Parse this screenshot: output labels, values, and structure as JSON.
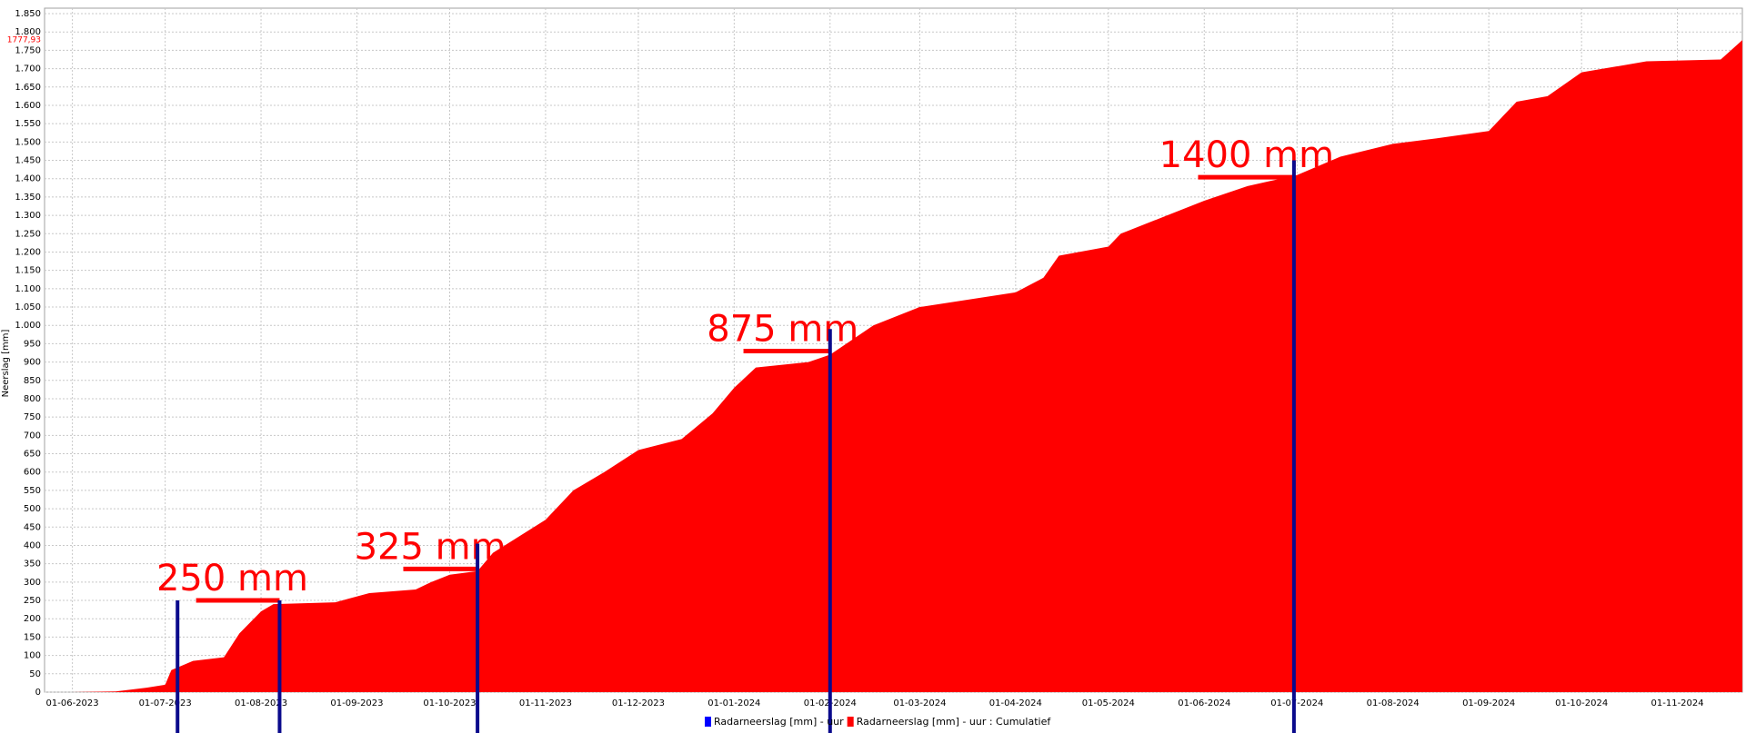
{
  "chart_data": {
    "type": "area",
    "y_label": "Neerslag [mm]",
    "x": [
      "01-06-2023",
      "15-06-2023",
      "25-06-2023",
      "01-07-2023",
      "03-07-2023",
      "10-07-2023",
      "20-07-2023",
      "25-07-2023",
      "01-08-2023",
      "05-08-2023",
      "25-08-2023",
      "05-09-2023",
      "20-09-2023",
      "25-09-2023",
      "01-10-2023",
      "10-10-2023",
      "15-10-2023",
      "01-11-2023",
      "10-11-2023",
      "20-11-2023",
      "01-12-2023",
      "15-12-2023",
      "25-12-2023",
      "01-01-2024",
      "08-01-2024",
      "25-01-2024",
      "01-02-2024",
      "15-02-2024",
      "01-03-2024",
      "01-04-2024",
      "10-04-2024",
      "15-04-2024",
      "01-05-2024",
      "05-05-2024",
      "20-05-2024",
      "01-06-2024",
      "15-06-2024",
      "01-07-2024",
      "15-07-2024",
      "01-08-2024",
      "15-08-2024",
      "01-09-2024",
      "10-09-2024",
      "20-09-2024",
      "01-10-2024",
      "15-10-2024",
      "22-10-2024",
      "15-11-2024",
      "22-11-2024"
    ],
    "series": [
      {
        "name": "Radarneerslag [mm] - uur : Cumulatief",
        "color": "#ff0000",
        "values": [
          0,
          2,
          12,
          20,
          60,
          85,
          95,
          160,
          220,
          240,
          245,
          270,
          280,
          300,
          320,
          330,
          380,
          470,
          550,
          600,
          660,
          690,
          760,
          830,
          885,
          900,
          920,
          1000,
          1050,
          1090,
          1130,
          1190,
          1215,
          1250,
          1300,
          1340,
          1380,
          1410,
          1460,
          1495,
          1510,
          1530,
          1610,
          1625,
          1690,
          1710,
          1720,
          1725,
          1777.93
        ]
      }
    ],
    "other_legend_entries": [
      {
        "name": "Radarneerslag [mm] - uur",
        "color": "#0000ff"
      }
    ],
    "last_value": {
      "value": 1777.93,
      "label": "1777,93"
    },
    "xlim": [
      "23-05-2023",
      "22-11-2024"
    ],
    "xticks": [
      "01-06-2023",
      "01-07-2023",
      "01-08-2023",
      "01-09-2023",
      "01-10-2023",
      "01-11-2023",
      "01-12-2023",
      "01-01-2024",
      "01-02-2024",
      "01-03-2024",
      "01-04-2024",
      "01-05-2024",
      "01-06-2024",
      "01-07-2024",
      "01-08-2024",
      "01-09-2024",
      "01-10-2024",
      "01-11-2024"
    ],
    "ylim": [
      0,
      1865
    ],
    "yticks": [
      0,
      50,
      100,
      150,
      200,
      250,
      300,
      350,
      400,
      450,
      500,
      550,
      600,
      650,
      700,
      750,
      800,
      850,
      900,
      950,
      {
        "value": 1000,
        "label": "1.000"
      },
      {
        "value": 1050,
        "label": "1.050"
      },
      {
        "value": 1100,
        "label": "1.100"
      },
      {
        "value": 1150,
        "label": "1.150"
      },
      {
        "value": 1200,
        "label": "1.200"
      },
      {
        "value": 1250,
        "label": "1.250"
      },
      {
        "value": 1300,
        "label": "1.300"
      },
      {
        "value": 1350,
        "label": "1.350"
      },
      {
        "value": 1400,
        "label": "1.400"
      },
      {
        "value": 1450,
        "label": "1.450"
      },
      {
        "value": 1500,
        "label": "1.500"
      },
      {
        "value": 1550,
        "label": "1.550"
      },
      {
        "value": 1600,
        "label": "1.600"
      },
      {
        "value": 1650,
        "label": "1.650"
      },
      {
        "value": 1700,
        "label": "1.700"
      },
      {
        "value": 1750,
        "label": "1.750"
      },
      {
        "value": 1800,
        "label": "1.800"
      },
      {
        "value": 1850,
        "label": "1.850"
      }
    ],
    "grid": true,
    "marker_color": "#0a0a8c",
    "markers": [
      {
        "x": "05-07-2023",
        "top": 250
      },
      {
        "x": "07-08-2023",
        "top": 250
      },
      {
        "x": "10-10-2023",
        "top": 405
      },
      {
        "x": "01-02-2024",
        "top": 990
      },
      {
        "x": "30-06-2024",
        "top": 1450
      }
    ],
    "annotation_color": "#ff0000",
    "annotations": [
      {
        "text": "250 mm",
        "level": 250,
        "from": "11-07-2023",
        "to": "07-08-2023"
      },
      {
        "text": "325 mm",
        "level": 336,
        "from": "16-09-2023",
        "to": "10-10-2023"
      },
      {
        "text": "875 mm",
        "level": 930,
        "from": "04-01-2024",
        "to": "01-02-2024"
      },
      {
        "text": "1400 mm",
        "level": 1404,
        "from": "30-05-2024",
        "to": "30-06-2024"
      }
    ]
  }
}
